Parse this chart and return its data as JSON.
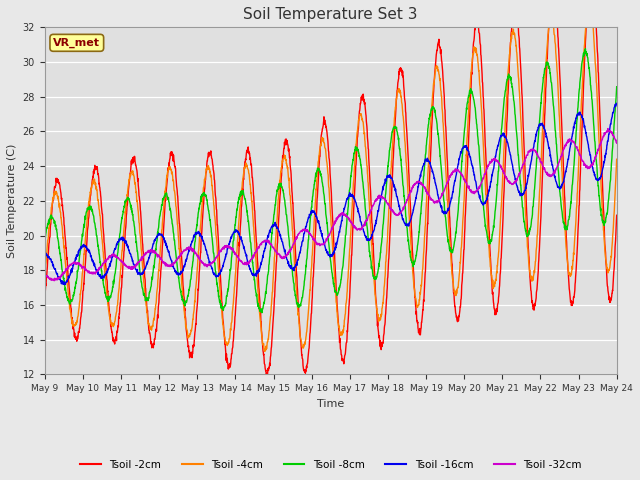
{
  "title": "Soil Temperature Set 3",
  "xlabel": "Time",
  "ylabel": "Soil Temperature (C)",
  "ylim": [
    12,
    32
  ],
  "yticks": [
    12,
    14,
    16,
    18,
    20,
    22,
    24,
    26,
    28,
    30,
    32
  ],
  "colors": {
    "Tsoil -2cm": "#FF0000",
    "Tsoil -4cm": "#FF8000",
    "Tsoil -8cm": "#00CC00",
    "Tsoil -16cm": "#0000EE",
    "Tsoil -32cm": "#CC00CC"
  },
  "background_color": "#E8E8E8",
  "plot_bg_color": "#E0E0E0",
  "vr_met_label": "VR_met",
  "start_day": 9,
  "end_day": 24,
  "points_per_day": 144,
  "figsize": [
    6.4,
    4.8
  ],
  "dpi": 100
}
